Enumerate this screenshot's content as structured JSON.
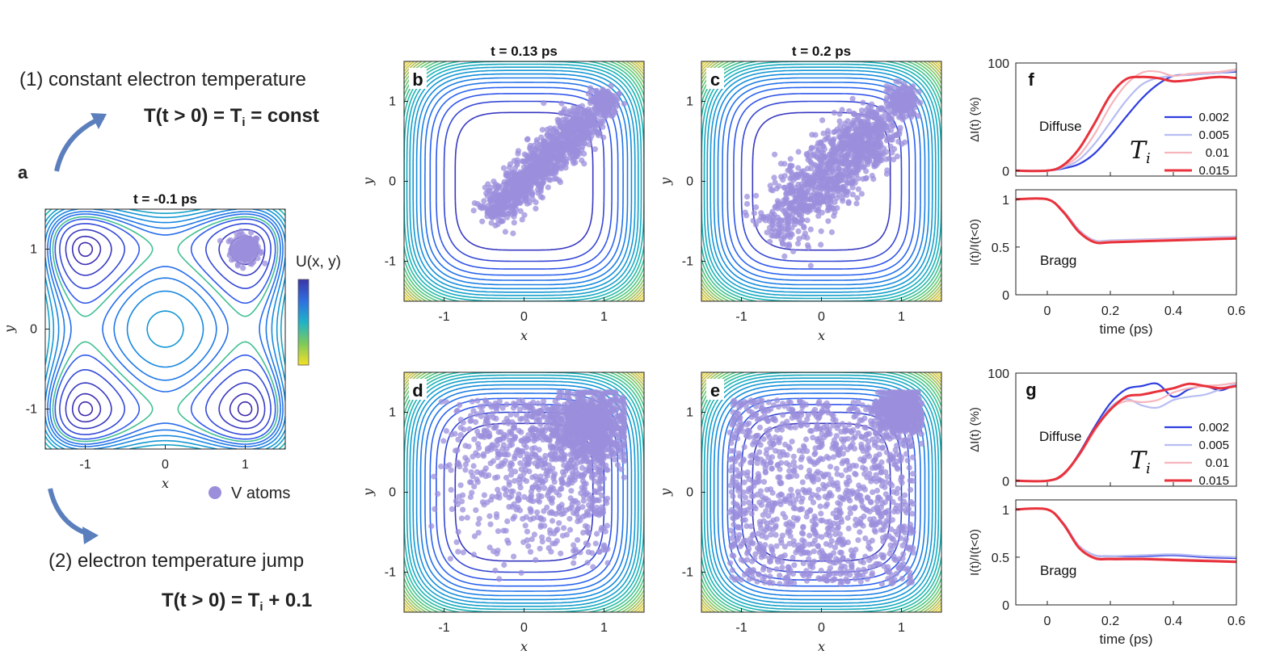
{
  "annotations": {
    "label_a": "a",
    "scenario1": "(1) constant electron temperature",
    "eq1_main": "T(t > 0) = T",
    "eq1_sub": "i",
    "eq1_rest": " = const",
    "scenario2": "(2) electron temperature jump",
    "eq2_main": "T(t > 0) = T",
    "eq2_sub": "i",
    "eq2_rest": " + 0.1",
    "colorbar_label": "U(x, y)",
    "atoms_legend": "V atoms",
    "Ti_symbol": "T",
    "Ti_sub": "i"
  },
  "colors": {
    "atoms": "#9b8fdc",
    "arrow": "#5b7fbd",
    "series": [
      "#2f3ee0",
      "#b7bdf2",
      "#f6b5bd",
      "#e8323c"
    ]
  },
  "chart_data": [
    {
      "id": "a",
      "type": "contour",
      "title": "t = -0.1 ps",
      "letter": "",
      "xlabel": "x",
      "ylabel": "y",
      "xlim": [
        -1.5,
        1.5
      ],
      "ylim": [
        -1.5,
        1.5
      ],
      "xticks": [
        -1,
        0,
        1
      ],
      "yticks": [
        -1,
        0,
        1
      ],
      "potential": "double-well (x^2-1)^2+(y^2-1)^2",
      "atoms": {
        "count": 200,
        "center": [
          1.0,
          1.0
        ],
        "spread": 0.1
      }
    },
    {
      "id": "b",
      "type": "contour",
      "title": "t = 0.13 ps",
      "letter": "b",
      "xlabel": "x",
      "ylabel": "y",
      "xlim": [
        -1.5,
        1.5
      ],
      "ylim": [
        -1.5,
        1.5
      ],
      "xticks": [
        -1,
        0,
        1
      ],
      "yticks": [
        -1,
        0,
        1
      ],
      "potential": "square well x^4+y^4",
      "atoms": {
        "count": 1300,
        "distribution": "diagonal band from (-0.5,-0.4) to (1.0,1.0)"
      }
    },
    {
      "id": "c",
      "type": "contour",
      "title": "t = 0.2 ps",
      "letter": "c",
      "xlabel": "x",
      "ylabel": "y",
      "xlim": [
        -1.5,
        1.5
      ],
      "ylim": [
        -1.5,
        1.5
      ],
      "xticks": [
        -1,
        0,
        1
      ],
      "yticks": [
        -1,
        0,
        1
      ],
      "potential": "square well x^4+y^4",
      "atoms": {
        "count": 1300,
        "distribution": "broadened diagonal from (-0.7,-0.7) to (1.0,1.0)"
      }
    },
    {
      "id": "d",
      "type": "contour",
      "title": "",
      "letter": "d",
      "xlabel": "x",
      "ylabel": "y",
      "xlim": [
        -1.5,
        1.5
      ],
      "ylim": [
        -1.5,
        1.5
      ],
      "xticks": [
        -1,
        0,
        1
      ],
      "yticks": [
        -1,
        0,
        1
      ],
      "potential": "square well x^4+y^4",
      "atoms": {
        "count": 1700,
        "distribution": "cluster near (1,1) plus spread over square"
      }
    },
    {
      "id": "e",
      "type": "contour",
      "title": "",
      "letter": "e",
      "xlabel": "x",
      "ylabel": "y",
      "xlim": [
        -1.5,
        1.5
      ],
      "ylim": [
        -1.5,
        1.5
      ],
      "xticks": [
        -1,
        0,
        1
      ],
      "yticks": [
        -1,
        0,
        1
      ],
      "potential": "square well x^4+y^4",
      "atoms": {
        "count": 1900,
        "distribution": "cluster near (1,1) plus uniform over square"
      }
    },
    {
      "id": "f",
      "type": "line",
      "letter": "f",
      "top": {
        "label": "Diffuse",
        "ylabel": "ΔI(t) (%)",
        "ylim": [
          -5,
          100
        ],
        "yticks": [
          0,
          100
        ],
        "x": [
          -0.1,
          0.0,
          0.05,
          0.1,
          0.15,
          0.2,
          0.25,
          0.3,
          0.35,
          0.4,
          0.45,
          0.5,
          0.55,
          0.6
        ],
        "series": [
          {
            "name": "0.002",
            "values": [
              0,
              0,
              2,
              6,
              16,
              32,
              50,
              67,
              80,
              88,
              89,
              90,
              91,
              92
            ]
          },
          {
            "name": "0.005",
            "values": [
              0,
              0,
              3,
              10,
              25,
              45,
              65,
              80,
              86,
              88,
              89,
              90,
              91,
              93
            ]
          },
          {
            "name": "0.01",
            "values": [
              0,
              0,
              4,
              14,
              34,
              60,
              80,
              91,
              92,
              88,
              90,
              91,
              92,
              94
            ]
          },
          {
            "name": "0.015",
            "values": [
              0,
              0,
              5,
              20,
              44,
              70,
              85,
              87,
              86,
              83,
              84,
              86,
              87,
              86
            ]
          }
        ]
      },
      "bottom": {
        "label": "Bragg",
        "ylabel": "I(t)/I(t<0)",
        "ylim": [
          0,
          1.1
        ],
        "yticks": [
          0,
          0.5,
          1
        ],
        "xlabel": "time (ps)",
        "xlim": [
          -0.1,
          0.6
        ],
        "xticks": [
          0,
          0.2,
          0.4,
          0.6
        ],
        "x": [
          -0.1,
          0.0,
          0.05,
          0.1,
          0.15,
          0.2,
          0.3,
          0.4,
          0.5,
          0.6
        ],
        "series": [
          {
            "name": "0.002",
            "values": [
              1.0,
              1.0,
              0.88,
              0.68,
              0.56,
              0.56,
              0.57,
              0.58,
              0.59,
              0.6
            ]
          },
          {
            "name": "0.005",
            "values": [
              1.0,
              1.0,
              0.88,
              0.68,
              0.57,
              0.57,
              0.58,
              0.59,
              0.6,
              0.61
            ]
          },
          {
            "name": "0.01",
            "values": [
              1.0,
              1.0,
              0.88,
              0.67,
              0.56,
              0.56,
              0.57,
              0.58,
              0.59,
              0.6
            ]
          },
          {
            "name": "0.015",
            "values": [
              1.0,
              1.0,
              0.87,
              0.66,
              0.55,
              0.55,
              0.56,
              0.57,
              0.58,
              0.59
            ]
          }
        ]
      },
      "legend_title": "Ti"
    },
    {
      "id": "g",
      "type": "line",
      "letter": "g",
      "top": {
        "label": "Diffuse",
        "ylabel": "ΔI(t) (%)",
        "ylim": [
          -5,
          100
        ],
        "yticks": [
          0,
          100
        ],
        "x": [
          -0.1,
          0.0,
          0.05,
          0.1,
          0.15,
          0.2,
          0.25,
          0.3,
          0.35,
          0.4,
          0.45,
          0.5,
          0.55,
          0.6
        ],
        "series": [
          {
            "name": "0.002",
            "values": [
              0,
              0,
              5,
              25,
              50,
              72,
              85,
              88,
              90,
              78,
              85,
              88,
              84,
              90
            ]
          },
          {
            "name": "0.005",
            "values": [
              0,
              0,
              5,
              24,
              48,
              68,
              76,
              70,
              68,
              75,
              78,
              80,
              85,
              90
            ]
          },
          {
            "name": "0.01",
            "values": [
              0,
              0,
              5,
              23,
              46,
              66,
              74,
              73,
              75,
              82,
              86,
              88,
              89,
              91
            ]
          },
          {
            "name": "0.015",
            "values": [
              0,
              0,
              6,
              24,
              48,
              66,
              78,
              80,
              83,
              86,
              90,
              88,
              86,
              88
            ]
          }
        ]
      },
      "bottom": {
        "label": "Bragg",
        "ylabel": "I(t)/I(t<0)",
        "ylim": [
          0,
          1.1
        ],
        "yticks": [
          0,
          0.5,
          1
        ],
        "xlabel": "time (ps)",
        "xlim": [
          -0.1,
          0.6
        ],
        "xticks": [
          0,
          0.2,
          0.4,
          0.6
        ],
        "x": [
          -0.1,
          0.0,
          0.05,
          0.1,
          0.15,
          0.2,
          0.3,
          0.4,
          0.5,
          0.6
        ],
        "series": [
          {
            "name": "0.002",
            "values": [
              1.0,
              1.0,
              0.86,
              0.62,
              0.52,
              0.51,
              0.51,
              0.52,
              0.5,
              0.49
            ]
          },
          {
            "name": "0.005",
            "values": [
              1.0,
              1.0,
              0.86,
              0.62,
              0.52,
              0.51,
              0.52,
              0.53,
              0.51,
              0.5
            ]
          },
          {
            "name": "0.01",
            "values": [
              1.0,
              1.0,
              0.85,
              0.61,
              0.5,
              0.49,
              0.49,
              0.48,
              0.47,
              0.46
            ]
          },
          {
            "name": "0.015",
            "values": [
              1.0,
              1.0,
              0.85,
              0.6,
              0.49,
              0.48,
              0.48,
              0.47,
              0.46,
              0.45
            ]
          }
        ]
      },
      "legend_title": "Ti"
    }
  ]
}
